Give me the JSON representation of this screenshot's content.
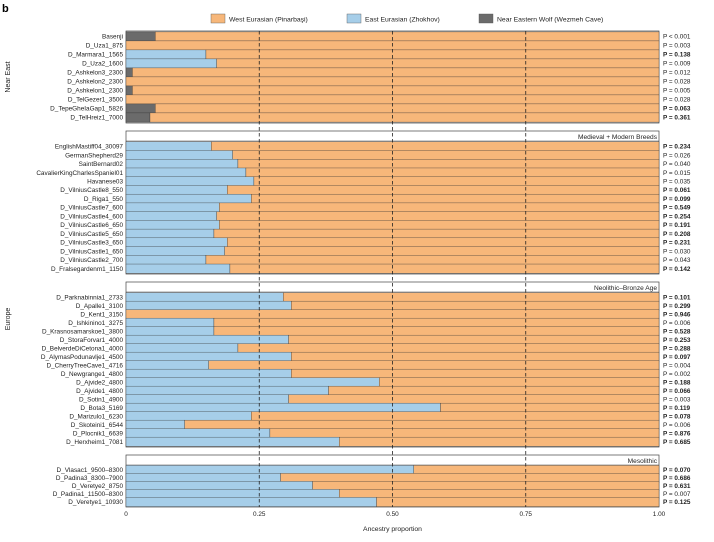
{
  "panel_label": "b",
  "chart_data": {
    "type": "bar",
    "orientation": "horizontal-stacked",
    "xlabel": "Ancestry proportion",
    "xlim": [
      0,
      1
    ],
    "xticks": [
      "0",
      "0.25",
      "0.50",
      "0.75",
      "1.00"
    ],
    "legend_position": "top",
    "series": [
      {
        "key": "west",
        "name": "West Eurasian (Pinarbaşi)",
        "color": "#F7B77A"
      },
      {
        "key": "east",
        "name": "East Eurasian (Zhokhov)",
        "color": "#A6CEE9"
      },
      {
        "key": "wolf",
        "name": "Near Eastern Wolf (Wezmeh Cave)",
        "color": "#6B6B6B"
      }
    ],
    "groups": [
      {
        "label": "Near East",
        "sections": [
          0
        ]
      },
      {
        "label": "Europe",
        "sections": [
          1,
          2,
          3
        ]
      }
    ],
    "sections": [
      {
        "title": "",
        "rows": [
          {
            "label": "Basenji",
            "east": 0,
            "wolf": 0.055,
            "p": "P < 0.001",
            "bold": false
          },
          {
            "label": "D_Uza1_875",
            "east": 0,
            "wolf": 0,
            "p": "P = 0.003",
            "bold": false
          },
          {
            "label": "D_Marmara1_1565",
            "east": 0.15,
            "wolf": 0,
            "p": "P = 0.138",
            "bold": true
          },
          {
            "label": "D_Uza2_1600",
            "east": 0.17,
            "wolf": 0,
            "p": "P = 0.009",
            "bold": false
          },
          {
            "label": "D_Ashkelon3_2300",
            "east": 0,
            "wolf": 0.012,
            "p": "P = 0.012",
            "bold": false
          },
          {
            "label": "D_Ashkelon2_2300",
            "east": 0,
            "wolf": 0,
            "p": "P = 0.028",
            "bold": false
          },
          {
            "label": "D_Ashkelon1_2300",
            "east": 0,
            "wolf": 0.012,
            "p": "P = 0.005",
            "bold": false
          },
          {
            "label": "D_TelGezer1_3500",
            "east": 0,
            "wolf": 0,
            "p": "P = 0.028",
            "bold": false
          },
          {
            "label": "D_TepeGheIaGap1_5826",
            "east": 0,
            "wolf": 0.055,
            "p": "P = 0.063",
            "bold": true
          },
          {
            "label": "D_TelHreiz1_7000",
            "east": 0,
            "wolf": 0.045,
            "p": "P = 0.361",
            "bold": true
          }
        ]
      },
      {
        "title": "Medieval + Modern Breeds",
        "rows": [
          {
            "label": "EnglishMastiff04_30097",
            "east": 0.16,
            "wolf": 0,
            "p": "P = 0.234",
            "bold": true
          },
          {
            "label": "GermanShepherd29",
            "east": 0.2,
            "wolf": 0,
            "p": "P = 0.026",
            "bold": false
          },
          {
            "label": "SaintBernard02",
            "east": 0.21,
            "wolf": 0,
            "p": "P = 0.040",
            "bold": false
          },
          {
            "label": "CavalierKingCharlesSpaniel01",
            "east": 0.225,
            "wolf": 0,
            "p": "P = 0.015",
            "bold": false
          },
          {
            "label": "Havanese03",
            "east": 0.24,
            "wolf": 0,
            "p": "P = 0.035",
            "bold": false
          },
          {
            "label": "D_VilniusCastle8_550",
            "east": 0.19,
            "wolf": 0,
            "p": "P = 0.061",
            "bold": true
          },
          {
            "label": "D_Riga1_550",
            "east": 0.235,
            "wolf": 0,
            "p": "P = 0.099",
            "bold": true
          },
          {
            "label": "D_VilniusCastle7_600",
            "east": 0.175,
            "wolf": 0,
            "p": "P = 0.549",
            "bold": true
          },
          {
            "label": "D_VilniusCastle4_600",
            "east": 0.17,
            "wolf": 0,
            "p": "P = 0.254",
            "bold": true
          },
          {
            "label": "D_VilniusCastle6_650",
            "east": 0.175,
            "wolf": 0,
            "p": "P = 0.191",
            "bold": true
          },
          {
            "label": "D_VilniusCastle5_650",
            "east": 0.165,
            "wolf": 0,
            "p": "P = 0.208",
            "bold": true
          },
          {
            "label": "D_VilniusCastle3_650",
            "east": 0.19,
            "wolf": 0,
            "p": "P = 0.231",
            "bold": true
          },
          {
            "label": "D_VilniusCastle1_650",
            "east": 0.185,
            "wolf": 0,
            "p": "P = 0.030",
            "bold": false
          },
          {
            "label": "D_VilniusCastle2_700",
            "east": 0.15,
            "wolf": 0,
            "p": "P = 0.043",
            "bold": false
          },
          {
            "label": "D_Fralsegardenm1_1150",
            "east": 0.195,
            "wolf": 0,
            "p": "P = 0.142",
            "bold": true
          }
        ]
      },
      {
        "title": "Neolithic–Bronze Age",
        "rows": [
          {
            "label": "D_Parknabinnia1_2733",
            "east": 0.295,
            "wolf": 0,
            "p": "P = 0.101",
            "bold": true
          },
          {
            "label": "D_Apalle1_3100",
            "east": 0.31,
            "wolf": 0,
            "p": "P = 0.299",
            "bold": true
          },
          {
            "label": "D_Kent1_3150",
            "east": 0,
            "wolf": 0,
            "p": "P = 0.946",
            "bold": true
          },
          {
            "label": "D_Ishkinino1_3275",
            "east": 0.165,
            "wolf": 0,
            "p": "P = 0.006",
            "bold": false
          },
          {
            "label": "D_Krasnosamarskoe1_3800",
            "east": 0.165,
            "wolf": 0,
            "p": "P = 0.528",
            "bold": true
          },
          {
            "label": "D_StoraForvar1_4000",
            "east": 0.305,
            "wolf": 0,
            "p": "P = 0.253",
            "bold": true
          },
          {
            "label": "D_BelverdeDiCetona1_4000",
            "east": 0.21,
            "wolf": 0,
            "p": "P = 0.288",
            "bold": true
          },
          {
            "label": "D_AlymasPodunavlje1_4500",
            "east": 0.31,
            "wolf": 0,
            "p": "P = 0.097",
            "bold": true
          },
          {
            "label": "D_CherryTreeCave1_4716",
            "east": 0.155,
            "wolf": 0,
            "p": "P = 0.004",
            "bold": false
          },
          {
            "label": "D_Newgrange1_4800",
            "east": 0.31,
            "wolf": 0,
            "p": "P = 0.002",
            "bold": false
          },
          {
            "label": "D_Ajvide2_4800",
            "east": 0.475,
            "wolf": 0,
            "p": "P = 0.188",
            "bold": true
          },
          {
            "label": "D_Ajvide1_4800",
            "east": 0.38,
            "wolf": 0,
            "p": "P = 0.066",
            "bold": true
          },
          {
            "label": "D_Sotin1_4900",
            "east": 0.305,
            "wolf": 0,
            "p": "P = 0.003",
            "bold": false
          },
          {
            "label": "D_Bota3_5169",
            "east": 0.59,
            "wolf": 0,
            "p": "P = 0.119",
            "bold": true
          },
          {
            "label": "D_Marizulo1_6230",
            "east": 0.235,
            "wolf": 0,
            "p": "P = 0.078",
            "bold": true
          },
          {
            "label": "D_Skoteini1_6544",
            "east": 0.11,
            "wolf": 0,
            "p": "P = 0.006",
            "bold": false
          },
          {
            "label": "D_Plocnik1_6639",
            "east": 0.27,
            "wolf": 0,
            "p": "P = 0.876",
            "bold": true
          },
          {
            "label": "D_Herxheim1_7081",
            "east": 0.4,
            "wolf": 0,
            "p": "P = 0.685",
            "bold": true
          }
        ]
      },
      {
        "title": "Mesolithic",
        "rows": [
          {
            "label": "D_Vlasac1_9500–8300",
            "east": 0.54,
            "wolf": 0,
            "p": "P = 0.070",
            "bold": true
          },
          {
            "label": "D_Padina3_8300–7900",
            "east": 0.29,
            "wolf": 0,
            "p": "P = 0.686",
            "bold": true
          },
          {
            "label": "D_Veretye2_8750",
            "east": 0.35,
            "wolf": 0,
            "p": "P = 0.631",
            "bold": true
          },
          {
            "label": "D_Padina1_11500–8300",
            "east": 0.4,
            "wolf": 0,
            "p": "P = 0.007",
            "bold": false
          },
          {
            "label": "D_Veretye1_10930",
            "east": 0.47,
            "wolf": 0,
            "p": "P = 0.125",
            "bold": true
          }
        ]
      }
    ]
  }
}
